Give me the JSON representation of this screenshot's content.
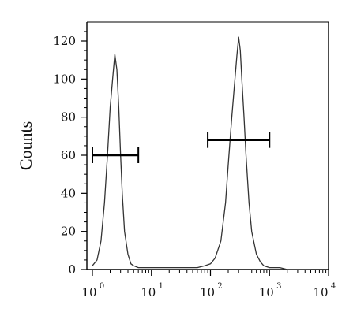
{
  "chart_data": {
    "type": "line",
    "ylabel": "Counts",
    "x_scale": "log",
    "xlim": [
      1,
      10000
    ],
    "ylim": [
      0,
      130
    ],
    "x_ticks": [
      {
        "base": "10",
        "exp": "0",
        "value": 1
      },
      {
        "base": "10",
        "exp": "1",
        "value": 10
      },
      {
        "base": "10",
        "exp": "2",
        "value": 100
      },
      {
        "base": "10",
        "exp": "3",
        "value": 1000
      },
      {
        "base": "10",
        "exp": "4",
        "value": 10000
      }
    ],
    "y_ticks": [
      "0",
      "20",
      "40",
      "60",
      "80",
      "100",
      "120"
    ],
    "series": [
      {
        "x": [
          1.0,
          1.2,
          1.4,
          1.6,
          1.8,
          2.0,
          2.2,
          2.4,
          2.6,
          2.8,
          3.0,
          3.2,
          3.5,
          4.0,
          4.5,
          5.0,
          6.0,
          8.0,
          10,
          20,
          40,
          60,
          80,
          100,
          120,
          150,
          180,
          200,
          230,
          260,
          280,
          300,
          320,
          340,
          370,
          400,
          450,
          500,
          600,
          700,
          800,
          1000,
          1500,
          2000,
          3000,
          5000
        ],
        "y": [
          2,
          5,
          15,
          35,
          60,
          85,
          100,
          113,
          105,
          85,
          60,
          40,
          20,
          8,
          3,
          2,
          1,
          1,
          1,
          1,
          1,
          1,
          2,
          3,
          6,
          15,
          35,
          55,
          80,
          100,
          112,
          122,
          115,
          100,
          80,
          60,
          35,
          20,
          8,
          4,
          2,
          1,
          1,
          0,
          0,
          0
        ]
      }
    ],
    "markers": [
      {
        "x_start": 1.0,
        "x_end": 6.0,
        "y": 60
      },
      {
        "x_start": 90,
        "x_end": 1000,
        "y": 68
      }
    ],
    "frame": "top-bottom-right-box",
    "grid": false
  }
}
